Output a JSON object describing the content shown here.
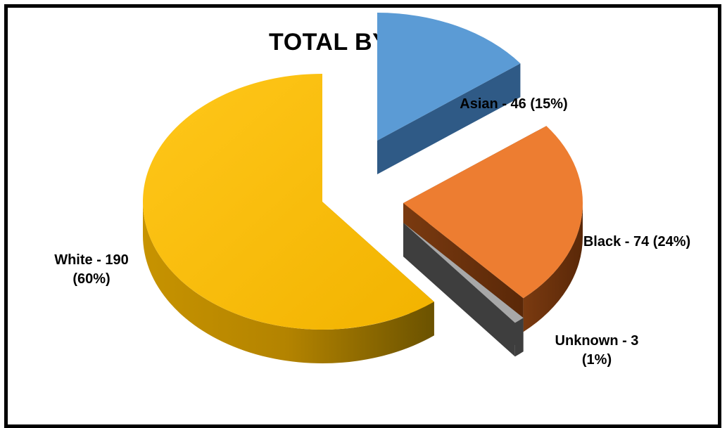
{
  "chart_data": {
    "type": "pie",
    "title": "TOTAL BY RACE",
    "slices": [
      {
        "category": "White",
        "value": 190,
        "percent": 60,
        "color": "#F5B800",
        "label_lines": [
          "White - 190",
          "(60%)"
        ]
      },
      {
        "category": "Asian",
        "value": 46,
        "percent": 15,
        "color": "#5B9BD5",
        "label_lines": [
          "Asian - 46 (15%)"
        ]
      },
      {
        "category": "Black",
        "value": 74,
        "percent": 24,
        "color": "#ED7D31",
        "label_lines": [
          "Black - 74 (24%)"
        ]
      },
      {
        "category": "Unknown",
        "value": 3,
        "percent": 1,
        "color": "#A5A5A5",
        "label_lines": [
          "Unknown - 3",
          "(1%)"
        ]
      }
    ],
    "legend": "none",
    "style": "3d-exploded"
  }
}
